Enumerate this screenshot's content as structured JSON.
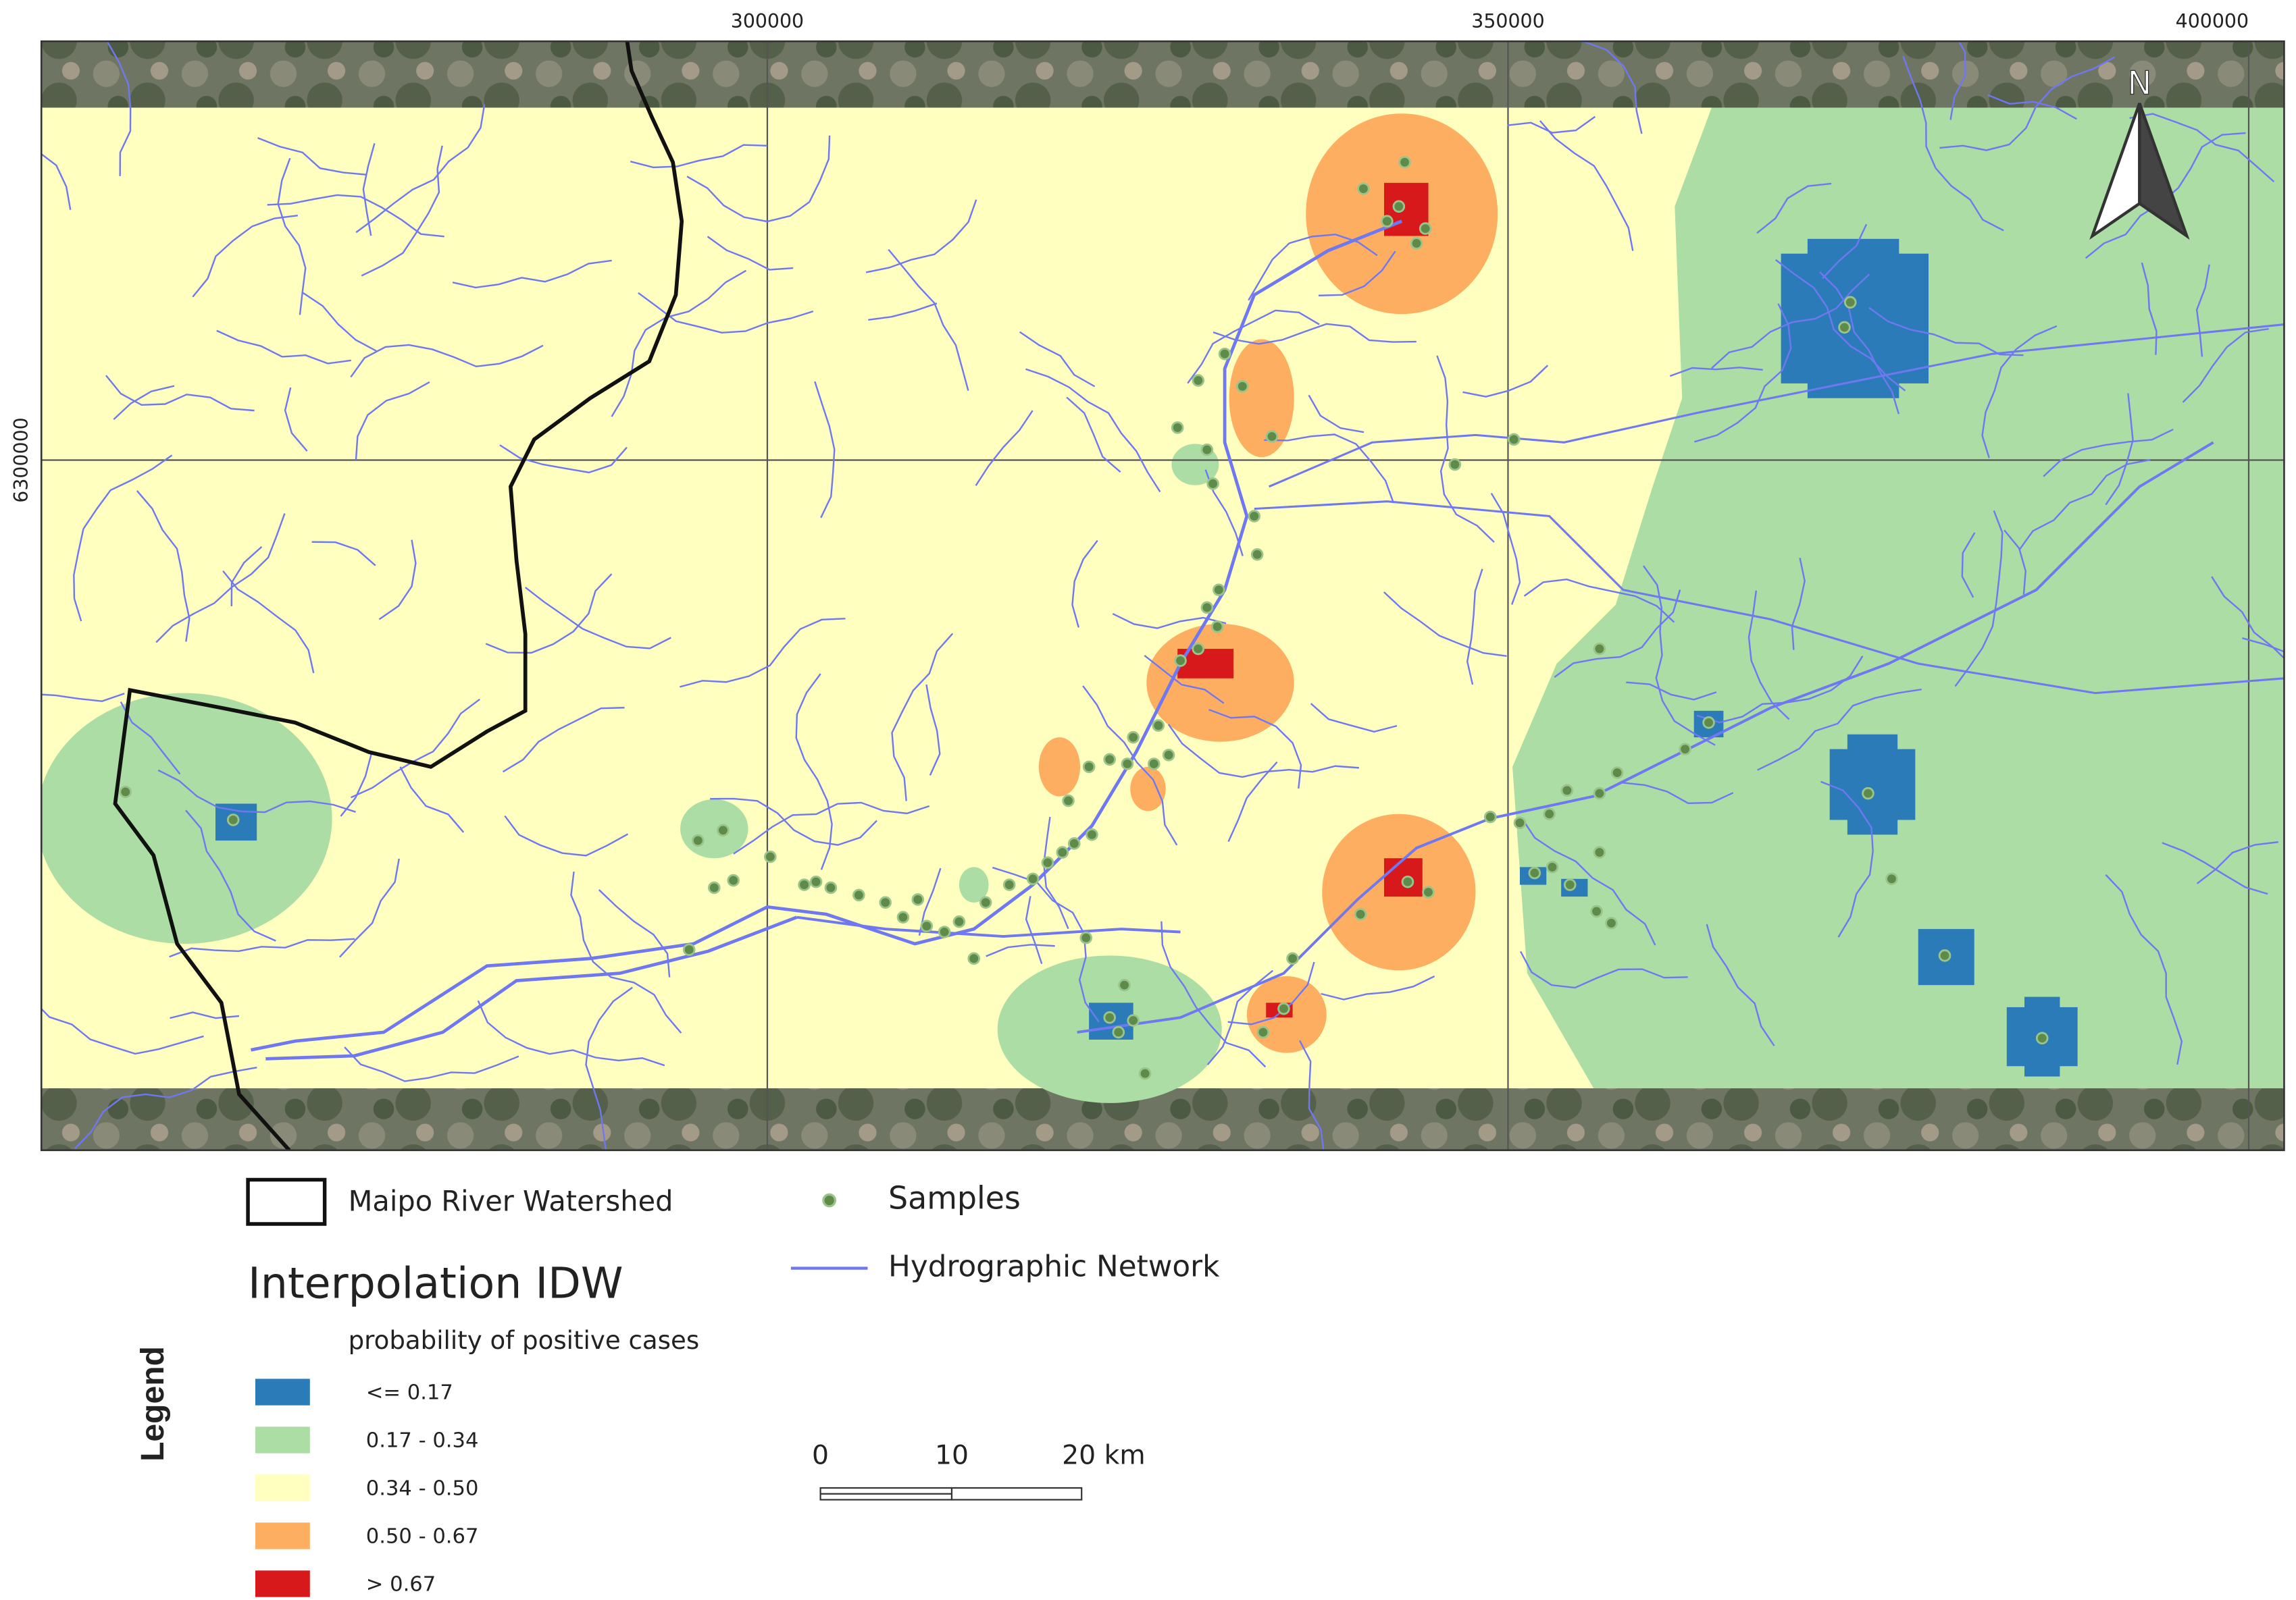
{
  "map": {
    "x_ticks": [
      "300000",
      "350000",
      "400000"
    ],
    "y_ticks": [
      "6300000"
    ],
    "north": "N"
  },
  "legend": {
    "title": "Legend",
    "watershed": "Maipo River Watershed",
    "samples": "Samples",
    "network": "Hydrographic Network",
    "idw_title": "Interpolation IDW",
    "idw_subtitle": "probability of positive cases",
    "classes": [
      {
        "label": "<= 0.17",
        "color": "#2b7bb9"
      },
      {
        "label": "0.17 - 0.34",
        "color": "#abdda4"
      },
      {
        "label": "0.34 - 0.50",
        "color": "#ffffbf"
      },
      {
        "label": "0.50 - 0.67",
        "color": "#fdae61"
      },
      {
        "label": "> 0.67",
        "color": "#d7191c"
      }
    ]
  },
  "scale_bar": {
    "labels": [
      "0",
      "10",
      "20 km"
    ]
  }
}
